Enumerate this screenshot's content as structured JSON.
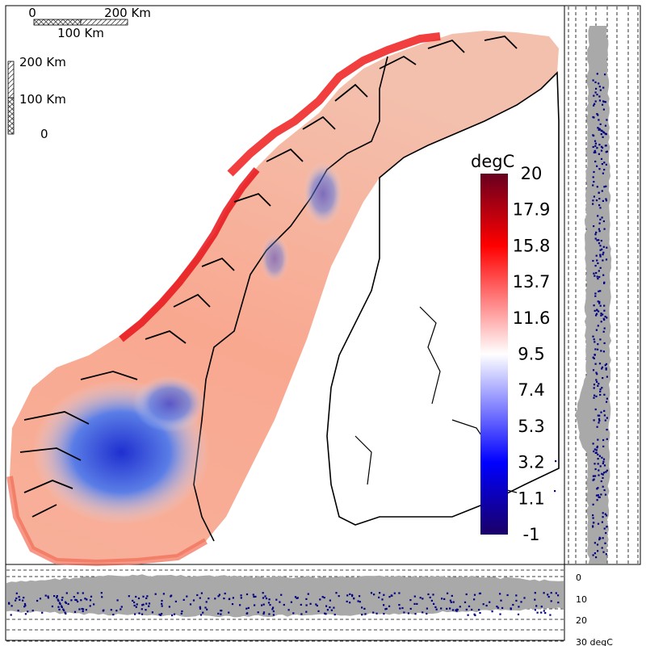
{
  "map": {
    "scalebar_h": {
      "zero": "0",
      "mid": "100 Km",
      "max": "200 Km"
    },
    "scalebar_v": {
      "zero": "0",
      "mid": "100 Km",
      "max": "200 Km"
    }
  },
  "legend": {
    "title": "degC",
    "ticks": [
      "20",
      "17.9",
      "15.8",
      "13.7",
      "11.6",
      "9.5",
      "7.4",
      "5.3",
      "3.2",
      "1.1",
      "-1"
    ],
    "range": [
      -1,
      20
    ],
    "colors": [
      "#1a0066",
      "#0000ff",
      "#ffffff",
      "#ff0000",
      "#67001f"
    ]
  },
  "profile_bottom": {
    "axis_ticks": [
      "0",
      "10",
      "20",
      "30 degC"
    ],
    "range": [
      0,
      30
    ],
    "band_color": "#a9a9a9",
    "point_color": "#000080"
  },
  "profile_right": {
    "band_color": "#a9a9a9",
    "point_color": "#000080"
  },
  "colors": {
    "border": "#000000",
    "dashed": "#000000"
  }
}
